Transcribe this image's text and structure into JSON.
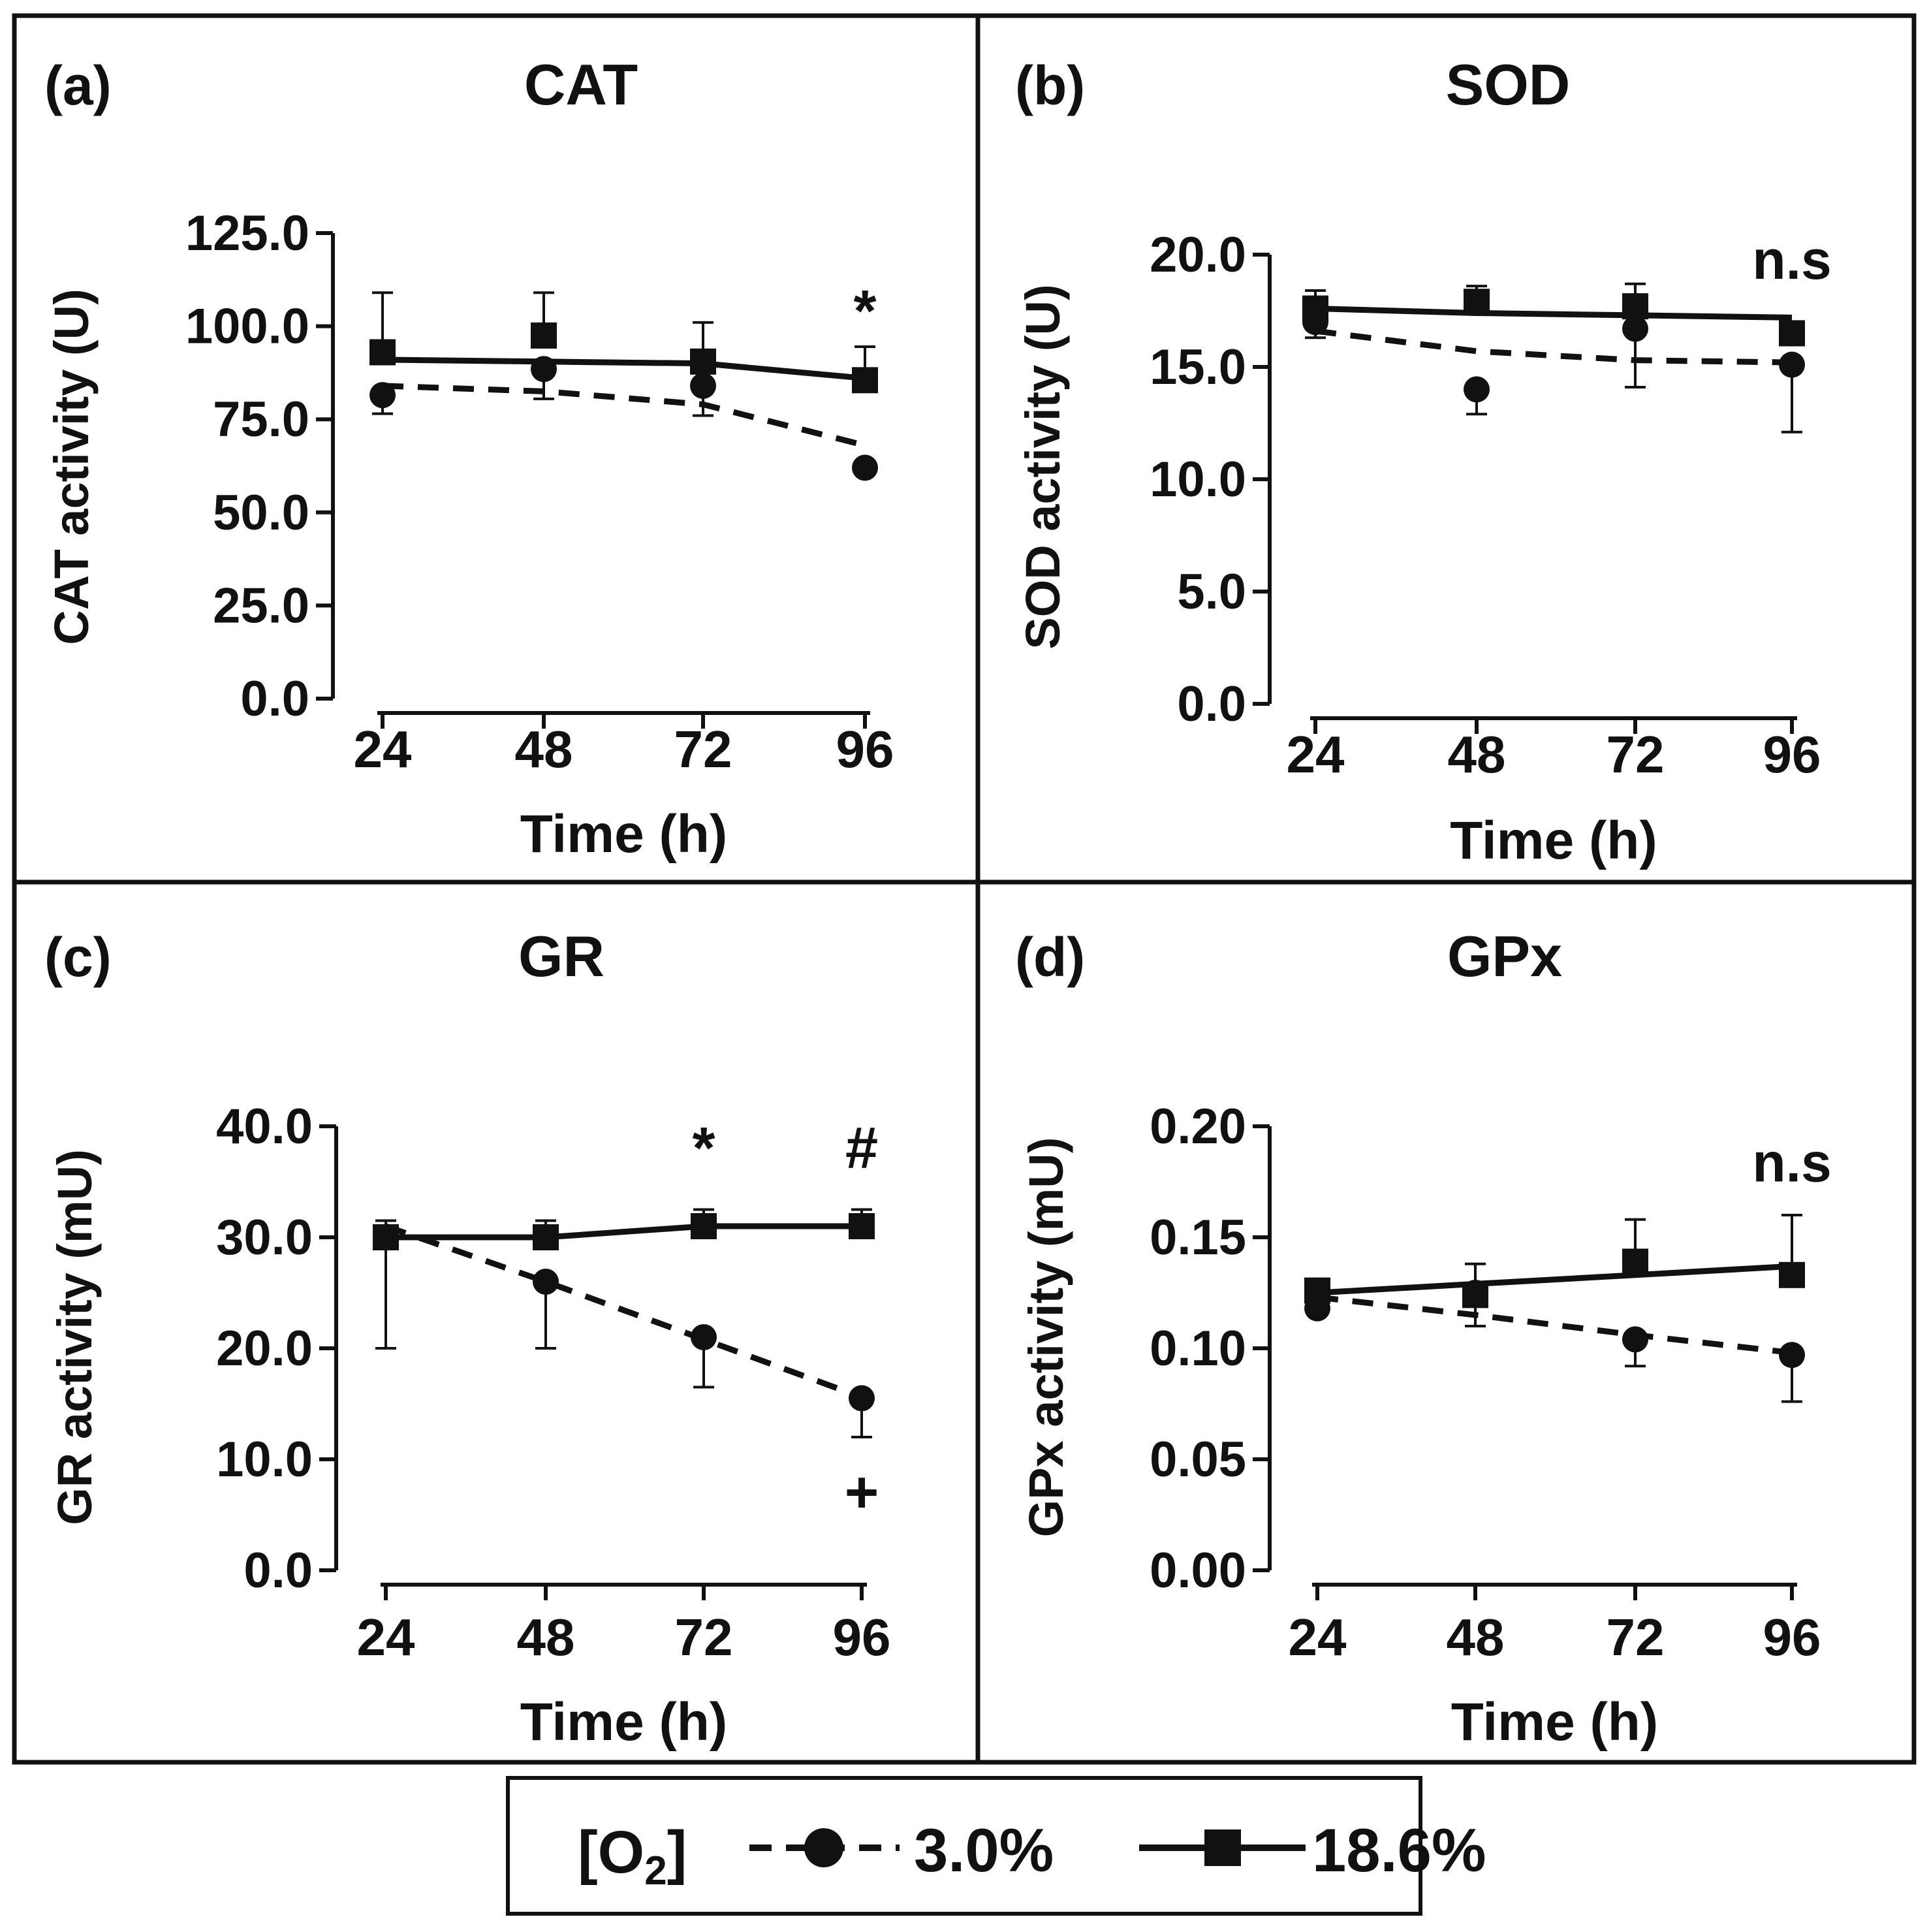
{
  "figure": {
    "legend": {
      "label_prefix": "[O",
      "label_sub": "2",
      "label_suffix": "]",
      "series_a": "3.0%",
      "series_b": "18.6%"
    }
  },
  "chart_data": [
    {
      "type": "line",
      "panel": "(a)",
      "title": "CAT",
      "xlabel": "Time (h)",
      "ylabel": "CAT activity  (U)",
      "x": [
        24,
        48,
        72,
        96
      ],
      "xtick_labels": [
        "24",
        "48",
        "72",
        "96"
      ],
      "ylim": [
        0,
        125
      ],
      "yticks": [
        0,
        25,
        50,
        75,
        100,
        125
      ],
      "ytick_labels": [
        "0.0",
        "25.0",
        "50.0",
        "75.0",
        "100.0",
        "125.0"
      ],
      "series": [
        {
          "name": "3.0%",
          "values": [
            81.5,
            88.5,
            84,
            62
          ],
          "errors": [
            5,
            8,
            8,
            0
          ],
          "fit": [
            84,
            82.5,
            79,
            68
          ],
          "style": "dashed",
          "marker": "circle"
        },
        {
          "name": "18.6%",
          "values": [
            93,
            97.5,
            90.5,
            85.5
          ],
          "errors": [
            16,
            11.5,
            10.5,
            9
          ],
          "fit": [
            91,
            90.5,
            90,
            86
          ],
          "style": "solid",
          "marker": "square"
        }
      ],
      "annotations": [
        {
          "text": "*",
          "x": 96,
          "y": 104
        }
      ]
    },
    {
      "type": "line",
      "panel": "(b)",
      "title": "SOD",
      "xlabel": "Time (h)",
      "ylabel": "SOD activity  (U)",
      "x": [
        24,
        48,
        72,
        96
      ],
      "xtick_labels": [
        "24",
        "48",
        "72",
        "96"
      ],
      "ylim": [
        0,
        20
      ],
      "yticks": [
        0,
        5,
        10,
        15,
        20
      ],
      "ytick_labels": [
        "0.0",
        "5.0",
        "10.0",
        "15.0",
        "20.0"
      ],
      "series": [
        {
          "name": "3.0%",
          "values": [
            17,
            14,
            16.7,
            15.1
          ],
          "errors": [
            0.7,
            1.1,
            2.6,
            3.0
          ],
          "fit": [
            16.6,
            15.7,
            15.3,
            15.2
          ],
          "style": "dashed",
          "marker": "circle"
        },
        {
          "name": "18.6%",
          "values": [
            17.6,
            17.9,
            17.7,
            16.5
          ],
          "errors": [
            0.8,
            0.7,
            1.0,
            0
          ],
          "fit": [
            17.6,
            17.4,
            17.3,
            17.2
          ],
          "style": "solid",
          "marker": "square"
        }
      ],
      "annotations": [
        {
          "text": "n.s",
          "x": 96,
          "y": 19.8
        }
      ]
    },
    {
      "type": "line",
      "panel": "(c)",
      "title": "GR",
      "xlabel": "Time (h)",
      "ylabel": "GR activity (mU)",
      "x": [
        24,
        48,
        72,
        96
      ],
      "xtick_labels": [
        "24",
        "48",
        "72",
        "96"
      ],
      "ylim": [
        0,
        40
      ],
      "yticks": [
        0,
        10,
        20,
        30,
        40
      ],
      "ytick_labels": [
        "0.0",
        "10.0",
        "20.0",
        "30.0",
        "40.0"
      ],
      "series": [
        {
          "name": "3.0%",
          "values": [
            30,
            26,
            21,
            15.5
          ],
          "errors": [
            10,
            6,
            4.5,
            3.5
          ],
          "fit": [
            31,
            26,
            20.8,
            15.6
          ],
          "style": "dashed",
          "marker": "circle"
        },
        {
          "name": "18.6%",
          "values": [
            30,
            30,
            31,
            31
          ],
          "errors": [
            1.5,
            1.5,
            1.5,
            1.5
          ],
          "fit": [
            30,
            30,
            31,
            31
          ],
          "style": "solid",
          "marker": "square"
        }
      ],
      "annotations": [
        {
          "text": "*",
          "x": 72,
          "y": 38
        },
        {
          "text": "#",
          "x": 96,
          "y": 38
        },
        {
          "text": "+",
          "x": 96,
          "y": 7
        }
      ]
    },
    {
      "type": "line",
      "panel": "(d)",
      "title": "GPx",
      "xlabel": "Time (h)",
      "ylabel": "GPx activity (mU)",
      "x": [
        24,
        48,
        72,
        96
      ],
      "xtick_labels": [
        "24",
        "48",
        "72",
        "96"
      ],
      "ylim": [
        0,
        0.2
      ],
      "yticks": [
        0,
        0.05,
        0.1,
        0.15,
        0.2
      ],
      "ytick_labels": [
        "0.00",
        "0.05",
        "0.10",
        "0.15",
        "0.20"
      ],
      "series": [
        {
          "name": "3.0%",
          "values": [
            0.118,
            0.125,
            0.104,
            0.097
          ],
          "errors": [
            0,
            0.015,
            0.012,
            0.021
          ],
          "fit": [
            0.123,
            0.115,
            0.106,
            0.098
          ],
          "style": "dashed",
          "marker": "circle"
        },
        {
          "name": "18.6%",
          "values": [
            0.126,
            0.124,
            0.139,
            0.133
          ],
          "errors": [
            0,
            0.014,
            0.019,
            0.027
          ],
          "fit": [
            0.125,
            0.129,
            0.133,
            0.137
          ],
          "style": "solid",
          "marker": "square"
        }
      ],
      "annotations": [
        {
          "text": "n.s",
          "x": 96,
          "y": 0.184
        }
      ]
    }
  ]
}
